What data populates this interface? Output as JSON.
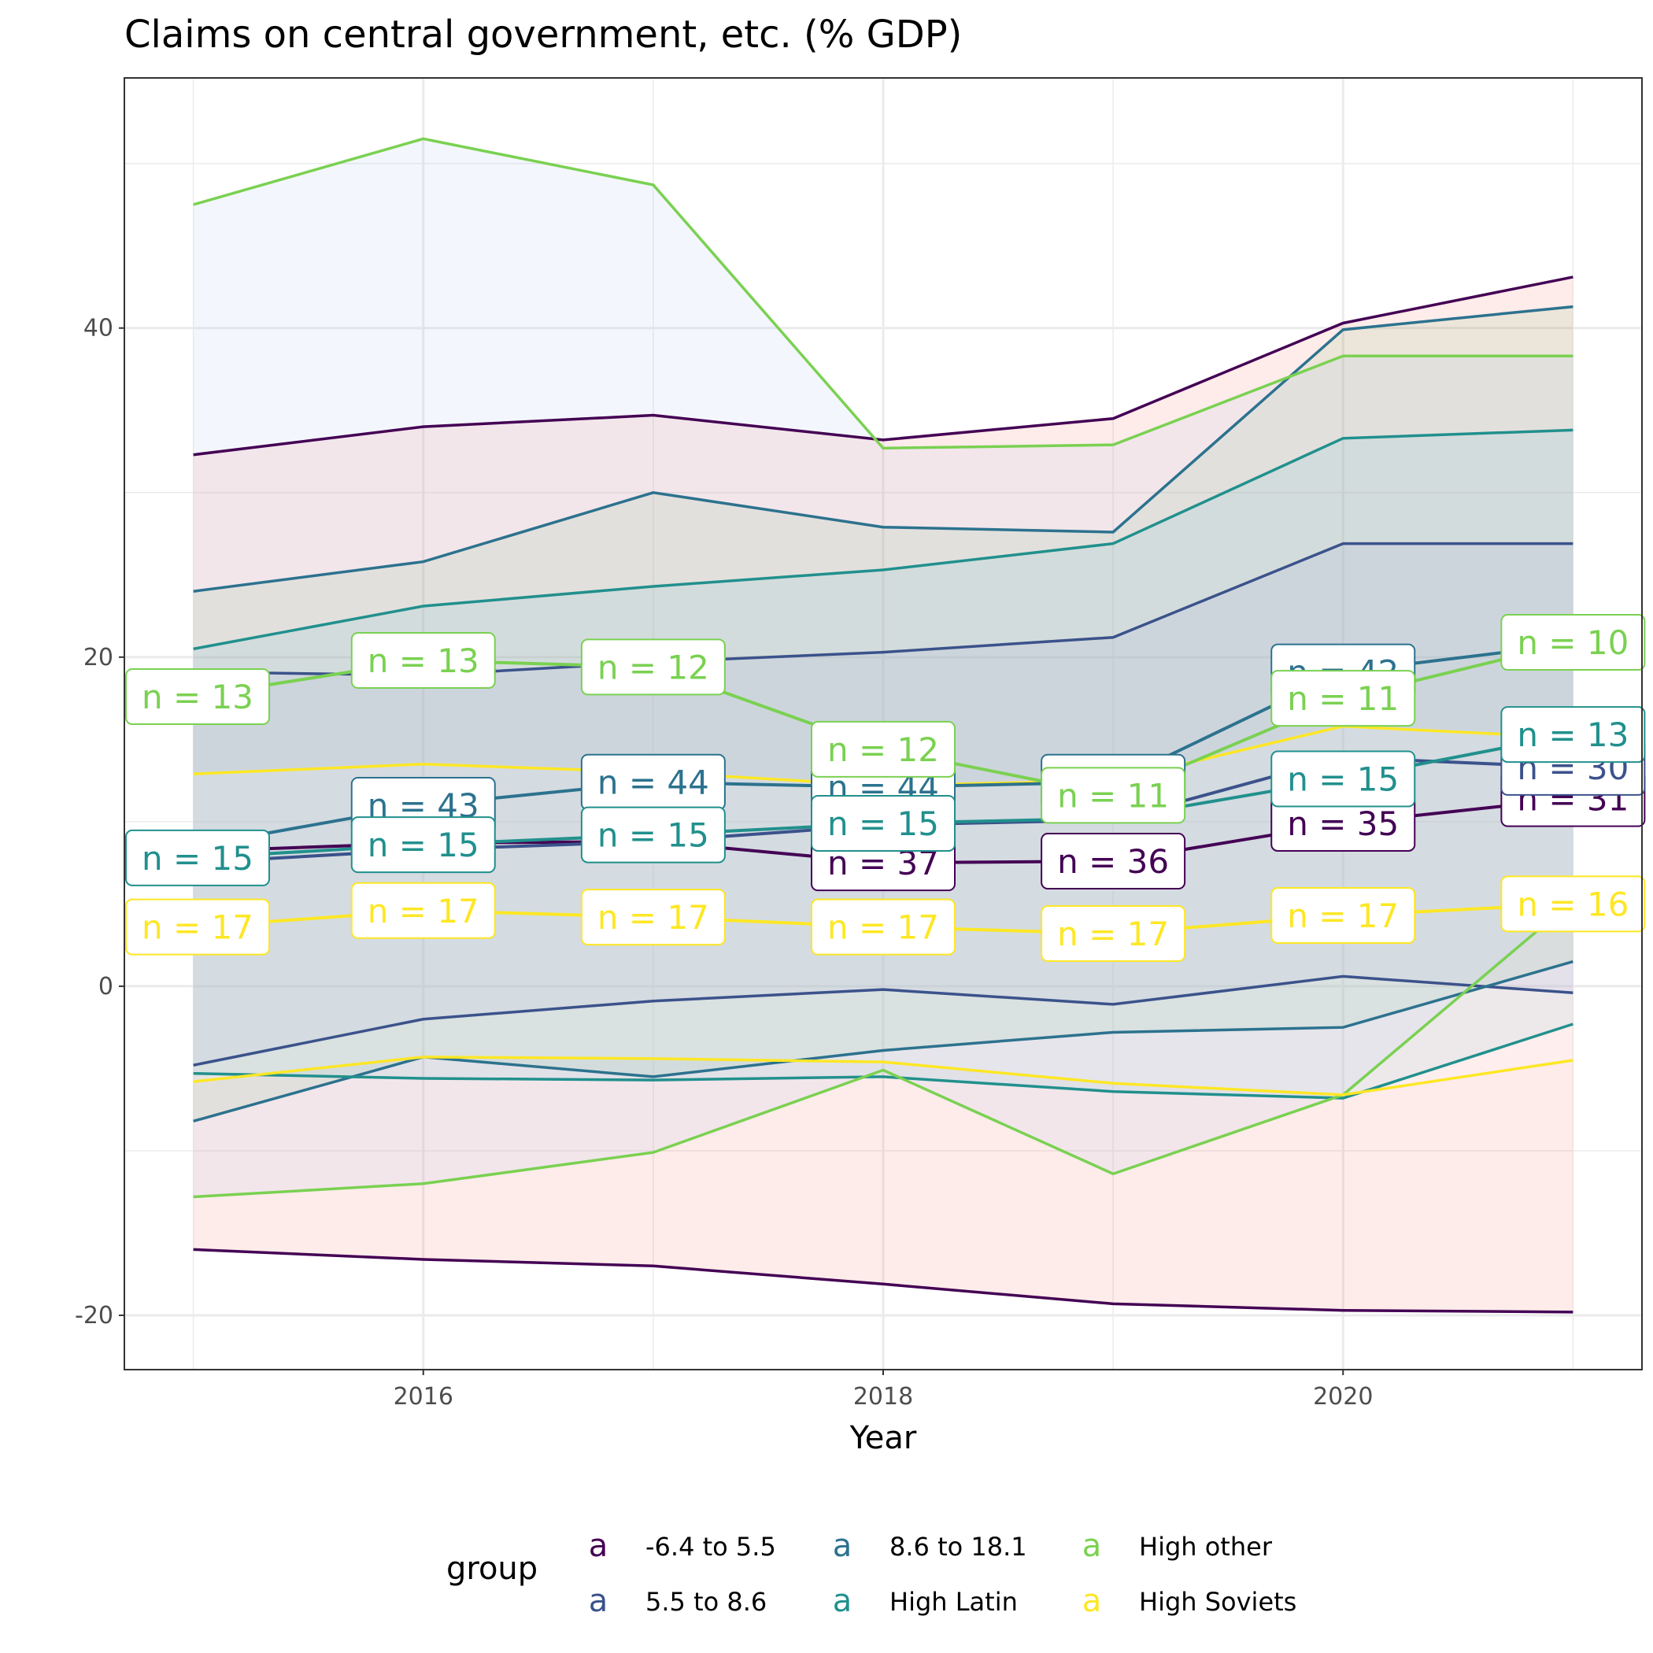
{
  "chart_data": {
    "type": "line",
    "title": "Claims on central government, etc. (% GDP)",
    "xlabel": "Year",
    "ylabel": "",
    "xlim": [
      2014.7,
      2021.3
    ],
    "ylim": [
      -23.3,
      55.2
    ],
    "x_ticks": [
      2016,
      2018,
      2020
    ],
    "y_ticks": [
      -20,
      0,
      20,
      40
    ],
    "grid": true,
    "legend_title": "group",
    "legend_position": "bottom",
    "legend_key_glyph": "a",
    "x": [
      2015,
      2016,
      2017,
      2018,
      2019,
      2020,
      2021
    ],
    "series": [
      {
        "name": "-6.4 to 5.5",
        "color": "#440154",
        "fill": "#f8766d",
        "upper": [
          32.3,
          34.0,
          34.7,
          33.2,
          34.5,
          40.3,
          43.1
        ],
        "mean": [
          8.2,
          8.7,
          8.8,
          7.5,
          7.6,
          9.9,
          11.4
        ],
        "lower": [
          -16.0,
          -16.6,
          -17.0,
          -18.1,
          -19.3,
          -19.7,
          -19.8
        ],
        "n_labels": [
          "",
          "",
          "",
          "n = 37",
          "n = 36",
          "n = 35",
          "n = 31"
        ]
      },
      {
        "name": "5.5 to 8.6",
        "color": "#3b528b",
        "fill": "#b79feb",
        "upper": [
          19.1,
          18.9,
          19.7,
          20.3,
          21.2,
          26.9,
          26.9
        ],
        "mean": [
          7.5,
          8.3,
          8.8,
          9.8,
          10.1,
          13.9,
          13.3
        ],
        "lower": [
          -4.8,
          -2.0,
          -0.9,
          -0.2,
          -1.1,
          0.6,
          -0.4
        ],
        "n_labels": [
          "",
          "",
          "",
          "",
          "",
          "",
          "n = 30"
        ]
      },
      {
        "name": "8.6 to 18.1",
        "color": "#21908d",
        "strokeColor": "#2c728e",
        "fill": "#7fbf7b",
        "upper": [
          24.0,
          25.8,
          30.0,
          27.9,
          27.6,
          39.9,
          41.3
        ],
        "mean": [
          8.5,
          11.0,
          12.4,
          12.1,
          12.4,
          19.1,
          20.8
        ],
        "lower": [
          -8.2,
          -4.3,
          -5.5,
          -3.9,
          -2.8,
          -2.5,
          1.5
        ],
        "n_labels": [
          "",
          "n = 43",
          "n = 44",
          "n = 44",
          "n = 43",
          "n = 42",
          ""
        ]
      },
      {
        "name": "High Latin",
        "color": "#28ae80",
        "strokeColor": "#21908d",
        "fill": "#71c7d3",
        "upper": [
          20.5,
          23.1,
          24.3,
          25.3,
          26.9,
          33.3,
          33.8
        ],
        "mean": [
          7.8,
          8.6,
          9.2,
          9.9,
          10.2,
          12.6,
          15.3
        ],
        "lower": [
          -5.3,
          -5.6,
          -5.7,
          -5.5,
          -6.4,
          -6.8,
          -2.3
        ],
        "n_labels": [
          "n = 15",
          "n = 15",
          "n = 15",
          "n = 15",
          "",
          "n = 15",
          "n = 13"
        ]
      },
      {
        "name": "High other",
        "color": "#7ad151",
        "fill": "#a9c9f2",
        "upper": [
          47.5,
          51.5,
          48.7,
          32.7,
          32.9,
          38.3,
          38.3
        ],
        "mean": [
          17.6,
          19.8,
          19.4,
          14.4,
          11.6,
          17.5,
          20.9
        ],
        "lower": [
          -12.8,
          -12.0,
          -10.1,
          -5.1,
          -11.4,
          -6.6,
          5.2
        ],
        "n_labels": [
          "n = 13",
          "n = 13",
          "n = 12",
          "n = 12",
          "n = 11",
          "n = 11",
          "n = 10"
        ]
      },
      {
        "name": "High Soviets",
        "color": "#fde725",
        "fill": "#ffffff",
        "upper": [
          12.9,
          13.5,
          13.0,
          12.2,
          12.5,
          15.8,
          15.1
        ],
        "mean": [
          3.6,
          4.6,
          4.2,
          3.6,
          3.2,
          4.3,
          5.0
        ],
        "lower": [
          -5.8,
          -4.3,
          -4.4,
          -4.6,
          -5.9,
          -6.6,
          -4.5
        ],
        "n_labels": [
          "n = 17",
          "n = 17",
          "n = 17",
          "n = 17",
          "n = 17",
          "n = 17",
          "n = 16"
        ]
      }
    ]
  }
}
